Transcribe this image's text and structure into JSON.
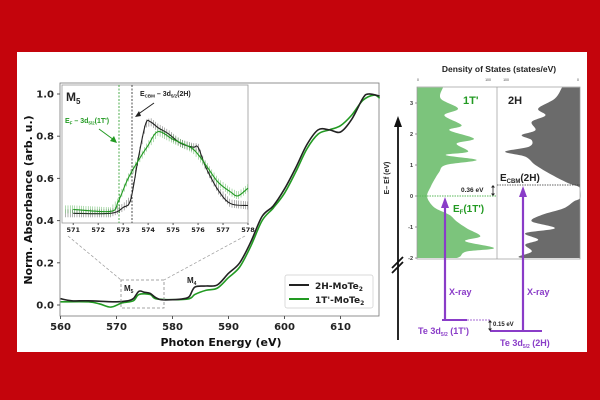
{
  "colors": {
    "border": "#c4040c",
    "h2": "#222222",
    "t1": "#229a22",
    "dos_1t": "#7cc47c",
    "dos_2h": "#6b6b6b",
    "xray": "#8a3cc8"
  },
  "chart_data": [
    {
      "type": "line",
      "xlabel": "Photon Energy (eV)",
      "ylabel": "Norm. Absorbance (arb. u.)",
      "xlim": [
        560,
        617
      ],
      "ylim": [
        -0.05,
        1.03
      ],
      "xticks": [
        "560",
        "570",
        "580",
        "590",
        "600",
        "610"
      ],
      "yticks": [
        "0.0",
        "0.2",
        "0.4",
        "0.6",
        "0.8",
        "1.0"
      ],
      "grid": false,
      "legend": "bottom-right",
      "annotations": {
        "m5": "M",
        "m5_sub": "5",
        "m4": "M",
        "m4_sub": "4"
      },
      "series": [
        {
          "name": "2H-MoTe",
          "name_sub": "2",
          "color": "#222222",
          "x": [
            560,
            562,
            565,
            570,
            572,
            573,
            574,
            575,
            576,
            577,
            578,
            580,
            582,
            583,
            584,
            586,
            588,
            590,
            592,
            594,
            596,
            598,
            600,
            602,
            604,
            606,
            608,
            610,
            612,
            614,
            615,
            617
          ],
          "y": [
            0.03,
            0.02,
            0.02,
            0.015,
            0.02,
            0.03,
            0.065,
            0.06,
            0.055,
            0.035,
            0.025,
            0.025,
            0.03,
            0.04,
            0.085,
            0.09,
            0.095,
            0.15,
            0.2,
            0.3,
            0.42,
            0.47,
            0.55,
            0.65,
            0.76,
            0.83,
            0.83,
            0.82,
            0.88,
            0.98,
            1.0,
            0.99
          ]
        },
        {
          "name": "1T'-MoTe",
          "name_sub": "2",
          "color": "#229a22",
          "x": [
            560,
            565,
            567,
            569,
            571,
            573,
            574,
            576,
            577,
            580,
            583,
            584,
            586,
            588,
            590,
            592,
            594,
            596,
            598,
            600,
            602,
            604,
            606,
            608,
            610,
            612,
            614,
            616,
            617
          ],
          "y": [
            0.015,
            0.015,
            0.005,
            -0.01,
            0.01,
            0.02,
            0.05,
            0.05,
            0.03,
            0.025,
            0.03,
            0.05,
            0.07,
            0.08,
            0.13,
            0.18,
            0.28,
            0.4,
            0.46,
            0.53,
            0.63,
            0.74,
            0.81,
            0.83,
            0.85,
            0.9,
            0.97,
            0.995,
            0.98
          ]
        }
      ]
    },
    {
      "type": "line",
      "title": "M",
      "title_sub": "5",
      "xlim": [
        570.55,
        578
      ],
      "ylim": [
        0.013,
        0.084
      ],
      "xticks": [
        "571",
        "572",
        "573",
        "574",
        "575",
        "576",
        "577",
        "578"
      ],
      "vlines": [
        {
          "x": 572.85,
          "label": [
            "E",
            "F",
            " – 3d",
            "5/2",
            "(1T')"
          ],
          "color": "#229a22"
        },
        {
          "x": 573.37,
          "label": [
            "E",
            "CBM",
            " – 3d",
            "5/2",
            "(2H)"
          ],
          "color": "#222222"
        }
      ],
      "series": [
        {
          "color": "#222222",
          "x": [
            571,
            572.5,
            573,
            573.3,
            573.6,
            573.9,
            574.1,
            574.4,
            574.8,
            575.3,
            575.8,
            576,
            576.3,
            576.8,
            577.3,
            578
          ],
          "y": [
            0.018,
            0.018,
            0.021,
            0.025,
            0.046,
            0.064,
            0.065,
            0.062,
            0.059,
            0.054,
            0.052,
            0.052,
            0.042,
            0.03,
            0.023,
            0.022
          ]
        },
        {
          "color": "#229a22",
          "x": [
            571,
            572.5,
            572.8,
            573.2,
            573.6,
            574,
            574.4,
            575,
            575.8,
            576.3,
            576.8,
            577.3,
            577.6,
            578
          ],
          "y": [
            0.02,
            0.019,
            0.024,
            0.036,
            0.045,
            0.053,
            0.06,
            0.056,
            0.051,
            0.043,
            0.034,
            0.029,
            0.027,
            0.031
          ]
        }
      ]
    },
    {
      "type": "area",
      "title": "Density of States (states/eV)",
      "ylabel": "E– Ef (eV)",
      "ylim": [
        -2,
        3.5
      ],
      "yticks": [
        "3",
        "2",
        "1",
        "0",
        "-1",
        "-2"
      ],
      "xticks_1t": [
        "0",
        "100"
      ],
      "xticks_2h": [
        "100",
        "0"
      ],
      "series": [
        {
          "name": "1T'",
          "color": "#7cc47c",
          "E": [
            3.5,
            3.14,
            2.82,
            2.6,
            2.28,
            2.12,
            1.85,
            1.69,
            1.43,
            1.32,
            1.16,
            1.0,
            0.78,
            0.52,
            0.3,
            0.03,
            -0.18,
            -0.4,
            -0.61,
            -0.82,
            -1.04,
            -1.3,
            -1.46,
            -1.68,
            -1.79,
            -1.95,
            -2.0
          ],
          "dos": [
            36,
            33,
            57,
            38,
            62,
            45,
            79,
            55,
            71,
            40,
            83,
            40,
            31,
            24,
            19,
            14,
            17,
            26,
            45,
            55,
            69,
            88,
            67,
            107,
            69,
            60,
            55
          ]
        },
        {
          "name": "2H",
          "color": "#6b6b6b",
          "E": [
            3.5,
            3.14,
            2.82,
            2.6,
            2.39,
            2.12,
            1.96,
            1.8,
            1.59,
            1.43,
            1.27,
            1.0,
            0.68,
            0.41,
            0.3,
            0.2,
            -0.07,
            -0.18,
            -0.4,
            -0.61,
            -0.82,
            -1.04,
            -1.2,
            -1.41,
            -1.57,
            -1.79,
            -1.95,
            -2.0
          ],
          "dos": [
            25,
            35,
            58,
            48,
            67,
            62,
            81,
            67,
            71,
            104,
            76,
            62,
            39,
            16,
            2,
            0,
            0,
            9,
            23,
            53,
            67,
            35,
            76,
            58,
            76,
            67,
            85,
            80
          ]
        }
      ],
      "annotations": {
        "gap": "0.36 eV",
        "core_shift": "0.15 eV",
        "ef": [
          "E",
          "F",
          "(1T')"
        ],
        "ecbm": [
          "E",
          "CBM",
          "(2H)"
        ],
        "xray_1t": "X-ray",
        "xray_2h": "X-ray",
        "te_1t": [
          "Te 3d",
          "5/2",
          " (1T')"
        ],
        "te_2h": [
          "Te 3d",
          "5/2",
          " (2H)"
        ]
      }
    }
  ]
}
